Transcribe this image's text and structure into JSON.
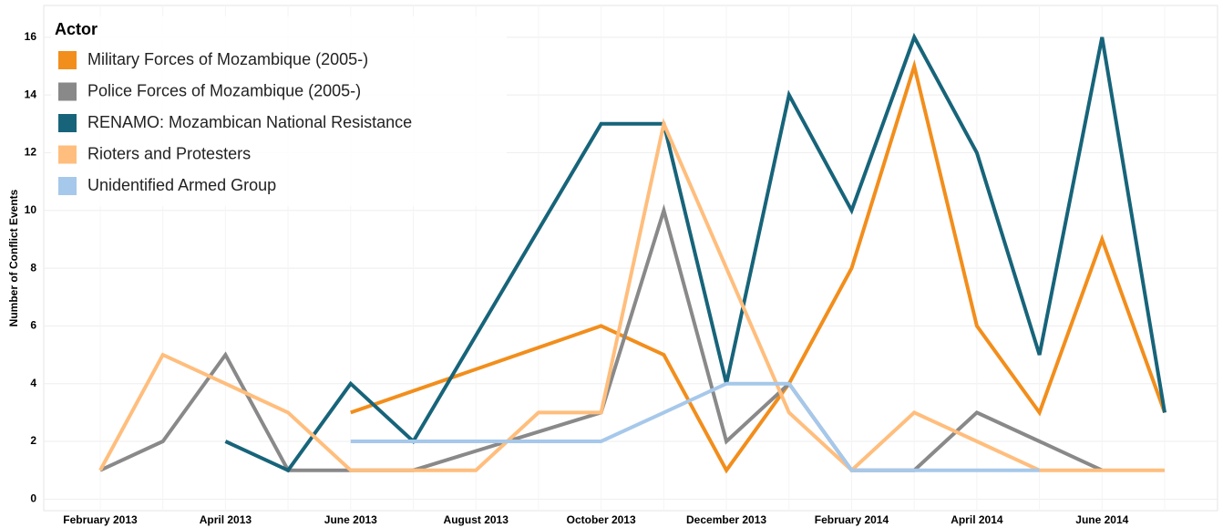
{
  "chart_data": {
    "type": "line",
    "y_label": "Number of Conflict Events",
    "legend_title": "Actor",
    "legend": "top-left",
    "grid": true,
    "connect_gaps": true,
    "categories": [
      "February 2013",
      null,
      "April 2013",
      null,
      "June 2013",
      null,
      "August 2013",
      null,
      "October 2013",
      null,
      "December 2013",
      null,
      "February 2014",
      null,
      "April 2014",
      null,
      "June 2014",
      null
    ],
    "ylim": [
      -0.4,
      17.1
    ],
    "yticks": [
      0,
      2,
      4,
      6,
      8,
      10,
      12,
      14,
      16
    ],
    "series": [
      {
        "name": "Military Forces of Mozambique (2005-)",
        "color": "#f28e1c",
        "values": [
          null,
          null,
          null,
          null,
          3,
          null,
          null,
          null,
          6,
          5,
          1,
          4,
          8,
          15,
          6,
          3,
          9,
          3
        ]
      },
      {
        "name": "Police Forces of Mozambique (2005-)",
        "color": "#898989",
        "values": [
          1,
          2,
          5,
          1,
          1,
          1,
          null,
          null,
          3,
          10,
          2,
          4,
          1,
          1,
          3,
          2,
          1,
          null
        ]
      },
      {
        "name": "RENAMO: Mozambican National Resistance",
        "color": "#17647a",
        "values": [
          null,
          null,
          2,
          1,
          4,
          2,
          null,
          null,
          13,
          13,
          4,
          14,
          10,
          16,
          12,
          5,
          16,
          3
        ]
      },
      {
        "name": "Rioters and Protesters",
        "color": "#ffbe7d",
        "values": [
          1,
          5,
          4,
          3,
          1,
          1,
          1,
          3,
          3,
          13,
          8,
          3,
          1,
          3,
          2,
          1,
          1,
          1
        ]
      },
      {
        "name": "Unidentified Armed Group",
        "color": "#a6c8ea",
        "values": [
          null,
          null,
          null,
          null,
          2,
          2,
          2,
          2,
          2,
          3,
          4,
          4,
          1,
          1,
          1,
          1,
          null,
          null
        ]
      }
    ]
  }
}
